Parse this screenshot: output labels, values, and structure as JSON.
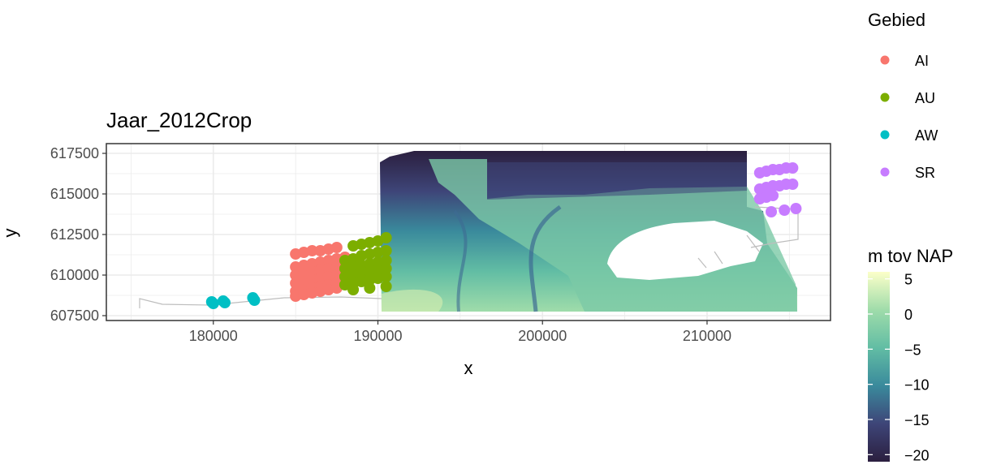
{
  "chart_data": {
    "type": "scatter",
    "title": "Jaar_2012Crop",
    "xlabel": "x",
    "ylabel": "y",
    "xlim": [
      173500,
      217500
    ],
    "ylim": [
      607200,
      618100
    ],
    "x_ticks": [
      180000,
      190000,
      200000,
      210000
    ],
    "x_tick_labels": [
      "180000",
      "190000",
      "200000",
      "210000"
    ],
    "y_ticks": [
      607500,
      610000,
      612500,
      615000,
      617500
    ],
    "y_tick_labels": [
      "607500",
      "610000",
      "612500",
      "615000",
      "617500"
    ],
    "grid": true,
    "legend_position": "right",
    "color_legend": {
      "title": "Gebied",
      "entries": [
        {
          "name": "AI",
          "color": "#F8766D"
        },
        {
          "name": "AU",
          "color": "#7CAE00"
        },
        {
          "name": "AW",
          "color": "#00BFC4"
        },
        {
          "name": "SR",
          "color": "#C77CFF"
        }
      ]
    },
    "fill_legend": {
      "title": "m tov NAP",
      "range": [
        -21,
        6
      ],
      "breaks": [
        5,
        0,
        -5,
        -10,
        -15,
        -20
      ],
      "labels": [
        "5",
        "0",
        "−5",
        "−10",
        "−15",
        "−20"
      ],
      "colors": [
        "#fcffc9",
        "#9fdcaa",
        "#62bda4",
        "#3a96a0",
        "#3d6b93",
        "#3e4578",
        "#2b1f3f"
      ]
    },
    "raster_extent": {
      "xmin": 190500,
      "xmax": 216300,
      "ymin": 607700,
      "ymax": 617600
    },
    "series": [
      {
        "name": "AI",
        "points": [
          [
            185000,
            611300
          ],
          [
            185500,
            611400
          ],
          [
            186000,
            611500
          ],
          [
            186500,
            611500
          ],
          [
            187000,
            611600
          ],
          [
            187500,
            611700
          ],
          [
            185000,
            610500
          ],
          [
            185500,
            610600
          ],
          [
            186000,
            610700
          ],
          [
            186500,
            610800
          ],
          [
            187000,
            610900
          ],
          [
            187500,
            611000
          ],
          [
            188000,
            611100
          ],
          [
            185000,
            610000
          ],
          [
            185500,
            610100
          ],
          [
            186000,
            610200
          ],
          [
            186500,
            610300
          ],
          [
            187000,
            610400
          ],
          [
            187500,
            610500
          ],
          [
            188000,
            610600
          ],
          [
            185000,
            609500
          ],
          [
            185500,
            609600
          ],
          [
            186000,
            609700
          ],
          [
            186500,
            609800
          ],
          [
            187000,
            609900
          ],
          [
            187500,
            610000
          ],
          [
            188000,
            610100
          ],
          [
            185000,
            609000
          ],
          [
            185500,
            609100
          ],
          [
            186000,
            609200
          ],
          [
            186500,
            609300
          ],
          [
            187000,
            609400
          ],
          [
            187500,
            609500
          ],
          [
            188000,
            609600
          ],
          [
            185000,
            608700
          ],
          [
            185500,
            608800
          ],
          [
            186000,
            608900
          ],
          [
            186500,
            609000
          ],
          [
            187000,
            609100
          ],
          [
            187500,
            609200
          ]
        ]
      },
      {
        "name": "AU",
        "points": [
          [
            188500,
            611800
          ],
          [
            189000,
            611900
          ],
          [
            189500,
            612000
          ],
          [
            190000,
            612100
          ],
          [
            190500,
            612300
          ],
          [
            188000,
            610900
          ],
          [
            188500,
            611000
          ],
          [
            189000,
            611200
          ],
          [
            189500,
            611300
          ],
          [
            190000,
            611400
          ],
          [
            190500,
            611500
          ],
          [
            188000,
            610400
          ],
          [
            188500,
            610500
          ],
          [
            189000,
            610600
          ],
          [
            189500,
            610700
          ],
          [
            190000,
            610800
          ],
          [
            190500,
            610900
          ],
          [
            188000,
            609900
          ],
          [
            188500,
            610000
          ],
          [
            189000,
            610100
          ],
          [
            189500,
            610200
          ],
          [
            190000,
            610300
          ],
          [
            190500,
            610400
          ],
          [
            188000,
            609400
          ],
          [
            188500,
            609500
          ],
          [
            189000,
            609600
          ],
          [
            189500,
            609700
          ],
          [
            190000,
            609800
          ],
          [
            190500,
            609900
          ],
          [
            188500,
            609100
          ],
          [
            189500,
            609200
          ],
          [
            190500,
            609300
          ]
        ]
      },
      {
        "name": "AW",
        "points": [
          [
            179900,
            608350
          ],
          [
            180000,
            608250
          ],
          [
            180600,
            608400
          ],
          [
            180700,
            608300
          ],
          [
            182400,
            608600
          ],
          [
            182500,
            608450
          ]
        ]
      },
      {
        "name": "SR",
        "points": [
          [
            213200,
            616300
          ],
          [
            213600,
            616400
          ],
          [
            214000,
            616500
          ],
          [
            214400,
            616500
          ],
          [
            214800,
            616600
          ],
          [
            215200,
            616600
          ],
          [
            213200,
            615300
          ],
          [
            213600,
            615400
          ],
          [
            214000,
            615500
          ],
          [
            214400,
            615500
          ],
          [
            214800,
            615600
          ],
          [
            215200,
            615600
          ],
          [
            213200,
            614700
          ],
          [
            213600,
            614800
          ],
          [
            214000,
            614900
          ],
          [
            213900,
            613900
          ],
          [
            214700,
            614000
          ],
          [
            215400,
            614100
          ]
        ]
      }
    ]
  }
}
